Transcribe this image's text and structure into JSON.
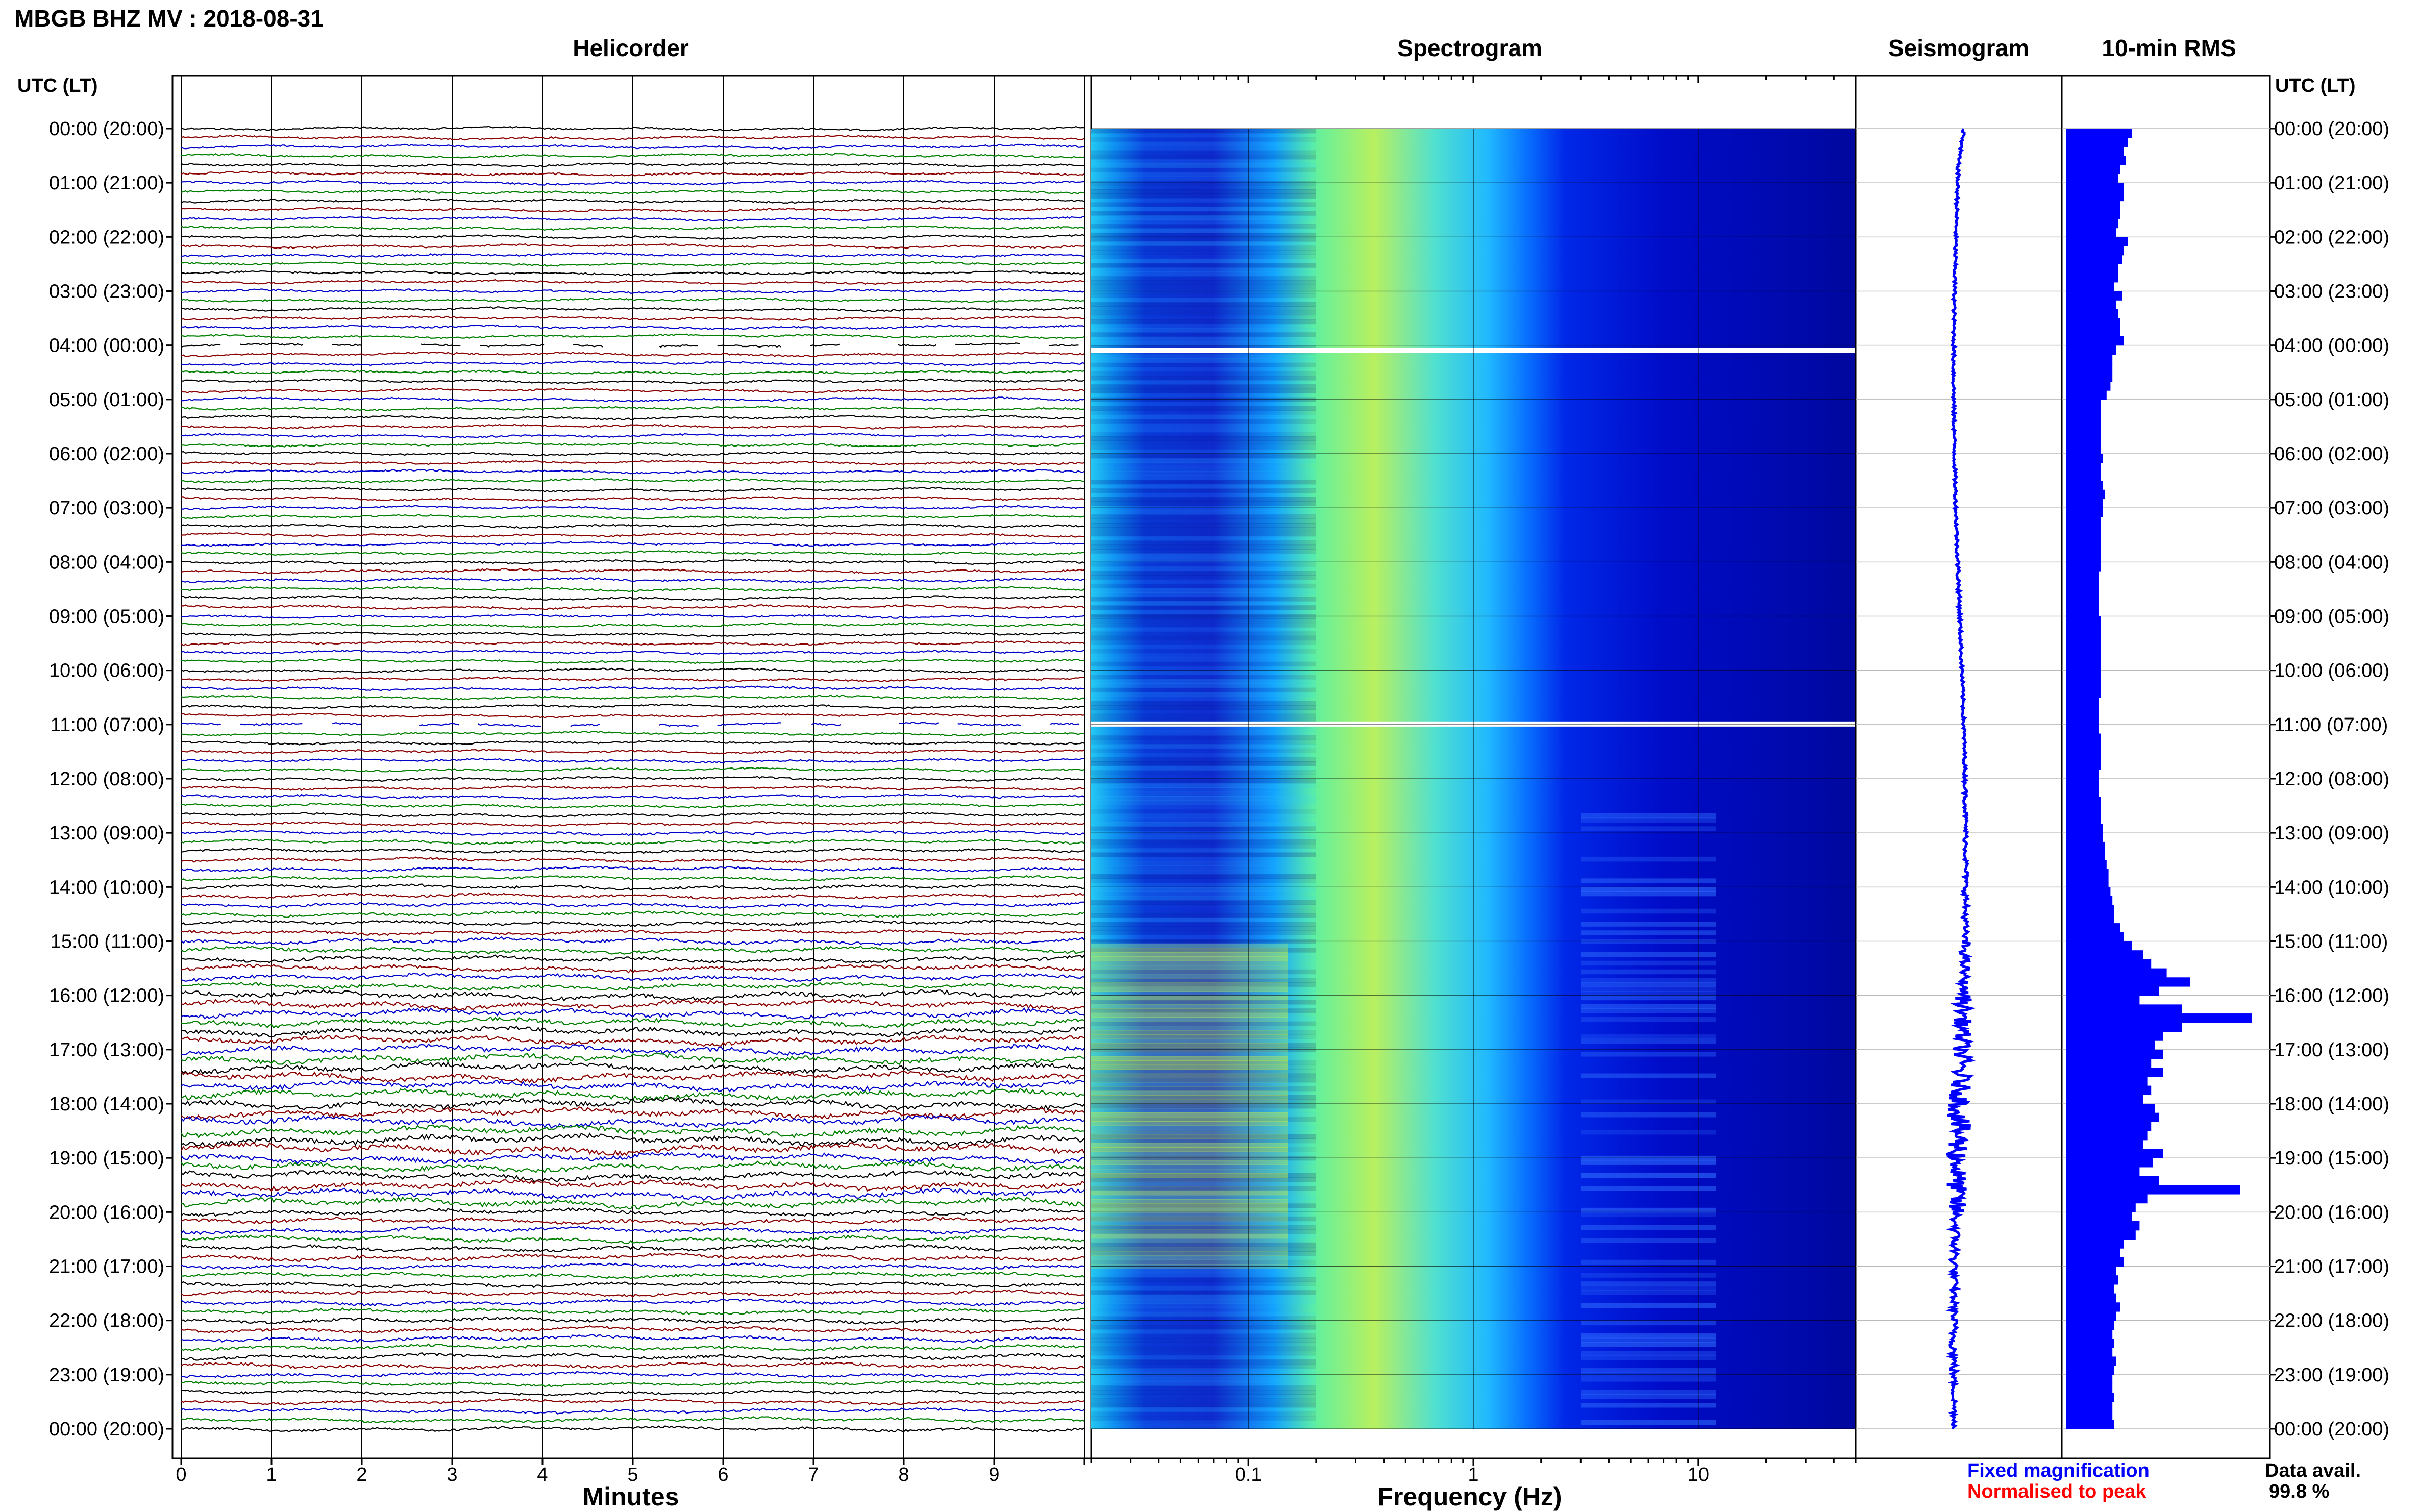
{
  "title": "MBGB BHZ MV : 2018-08-31",
  "panels": {
    "helicorder": "Helicorder",
    "spectrogram": "Spectrogram",
    "seismogram": "Seismogram",
    "rms": "10-min RMS"
  },
  "utc_lt_label": "UTC (LT)",
  "time_labels": [
    "00:00 (20:00)",
    "01:00 (21:00)",
    "02:00 (22:00)",
    "03:00 (23:00)",
    "04:00 (00:00)",
    "05:00 (01:00)",
    "06:00 (02:00)",
    "07:00 (03:00)",
    "08:00 (04:00)",
    "09:00 (05:00)",
    "10:00 (06:00)",
    "11:00 (07:00)",
    "12:00 (08:00)",
    "13:00 (09:00)",
    "14:00 (10:00)",
    "15:00 (11:00)",
    "16:00 (12:00)",
    "17:00 (13:00)",
    "18:00 (14:00)",
    "19:00 (15:00)",
    "20:00 (16:00)",
    "21:00 (17:00)",
    "22:00 (18:00)",
    "23:00 (19:00)",
    "00:00 (20:00)"
  ],
  "legend": {
    "fixed": "Fixed magnification",
    "normalised": "Normalised to peak",
    "fixed_color": "#0000ff",
    "normalised_color": "#ff0000"
  },
  "data_avail": {
    "label": "Data avail.",
    "value": "99.8 %"
  },
  "chart_data": [
    {
      "type": "line",
      "panel": "helicorder",
      "xlabel": "Minutes",
      "x_ticks": [
        "0",
        "1",
        "2",
        "3",
        "4",
        "5",
        "6",
        "7",
        "8",
        "9"
      ],
      "xlim": [
        0,
        10
      ],
      "ylim_hours": [
        0,
        24
      ],
      "rows": 144,
      "trace_colors": [
        "#000000",
        "#8b0000",
        "#0000cd",
        "#008000"
      ],
      "amplitude_by_hour": [
        1,
        1,
        1,
        1,
        1,
        1,
        1,
        1,
        1.1,
        1,
        1,
        1,
        1.1,
        1.2,
        1.4,
        1.8,
        2.4,
        2.6,
        2.8,
        2.6,
        1.8,
        1.5,
        1.6,
        1.3
      ],
      "gaps_hours": [
        4.0,
        11.0
      ]
    },
    {
      "type": "heatmap",
      "panel": "spectrogram",
      "xlabel": "Frequency (Hz)",
      "x_scale": "log",
      "x_ticks": [
        "0.1",
        "1",
        "10"
      ],
      "xlim": [
        0.02,
        50
      ],
      "ylim_hours": [
        0,
        24
      ],
      "colormap": [
        "#00008b",
        "#0000ff",
        "#0066ff",
        "#00ccff",
        "#66ff99",
        "#ccff33",
        "#ffff00"
      ],
      "peak_band_hz": [
        0.2,
        0.5
      ],
      "gaps_hours": [
        4.1,
        11.0
      ]
    },
    {
      "type": "line",
      "panel": "seismogram",
      "ylim_hours": [
        0,
        24
      ],
      "color": "#0000ff"
    },
    {
      "type": "bar",
      "panel": "rms",
      "orientation": "horizontal",
      "color": "#0000ff",
      "bin_minutes": 10,
      "values": [
        0.34,
        0.32,
        0.3,
        0.31,
        0.28,
        0.27,
        0.3,
        0.3,
        0.28,
        0.28,
        0.27,
        0.26,
        0.32,
        0.3,
        0.29,
        0.27,
        0.27,
        0.25,
        0.29,
        0.26,
        0.27,
        0.28,
        0.28,
        0.3,
        0.26,
        0.24,
        0.24,
        0.24,
        0.23,
        0.21,
        0.18,
        0.18,
        0.18,
        0.18,
        0.18,
        0.18,
        0.19,
        0.18,
        0.18,
        0.19,
        0.2,
        0.19,
        0.19,
        0.18,
        0.18,
        0.18,
        0.18,
        0.18,
        0.18,
        0.17,
        0.17,
        0.17,
        0.17,
        0.17,
        0.18,
        0.18,
        0.18,
        0.18,
        0.18,
        0.18,
        0.18,
        0.18,
        0.18,
        0.17,
        0.17,
        0.17,
        0.17,
        0.18,
        0.18,
        0.18,
        0.18,
        0.17,
        0.17,
        0.17,
        0.18,
        0.18,
        0.18,
        0.19,
        0.19,
        0.2,
        0.2,
        0.21,
        0.22,
        0.22,
        0.23,
        0.24,
        0.25,
        0.25,
        0.28,
        0.3,
        0.34,
        0.4,
        0.44,
        0.52,
        0.64,
        0.48,
        0.38,
        0.6,
        0.96,
        0.6,
        0.5,
        0.46,
        0.5,
        0.44,
        0.5,
        0.42,
        0.44,
        0.4,
        0.46,
        0.48,
        0.44,
        0.42,
        0.4,
        0.5,
        0.45,
        0.38,
        0.48,
        0.9,
        0.42,
        0.36,
        0.34,
        0.38,
        0.36,
        0.3,
        0.28,
        0.3,
        0.26,
        0.27,
        0.25,
        0.26,
        0.28,
        0.26,
        0.25,
        0.24,
        0.25,
        0.24,
        0.26,
        0.25,
        0.24,
        0.24,
        0.25,
        0.24,
        0.24,
        0.25
      ]
    }
  ]
}
